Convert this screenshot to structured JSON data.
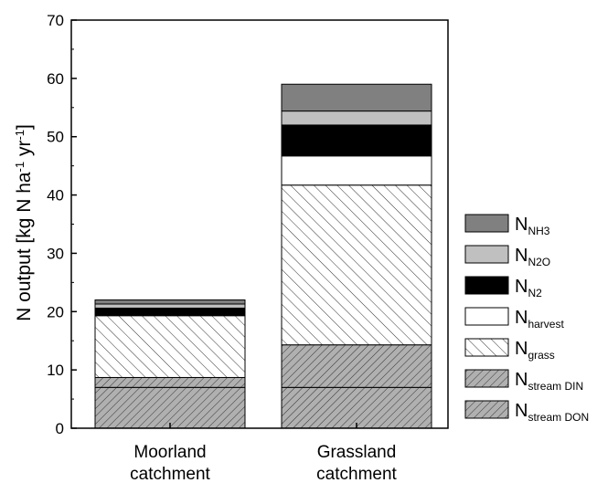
{
  "chart_data": {
    "type": "bar",
    "stacked": true,
    "title": "",
    "ylabel": "N output [kg N ha",
    "ylabel_sup1": "-1",
    "ylabel_mid": " yr",
    "ylabel_sup2": "-1",
    "ylabel_end": "]",
    "ylim": [
      0,
      70
    ],
    "yticks": [
      0,
      10,
      20,
      30,
      40,
      50,
      60,
      70
    ],
    "categories": [
      {
        "line1": "Moorland",
        "line2": "catchment"
      },
      {
        "line1": "Grassland",
        "line2": "catchment"
      }
    ],
    "series": [
      {
        "name": "N",
        "sub": "stream DON",
        "fill": "hatch-dense",
        "color": "#b0b0b0",
        "values": [
          7.0,
          7.0
        ]
      },
      {
        "name": "N",
        "sub": "stream DIN",
        "fill": "hatch-dense",
        "color": "#b0b0b0",
        "values": [
          1.7,
          7.3
        ]
      },
      {
        "name": "N",
        "sub": "grass",
        "fill": "hatch-sparse",
        "color": "#ffffff",
        "values": [
          10.6,
          27.4
        ]
      },
      {
        "name": "N",
        "sub": "harvest",
        "fill": "solid",
        "color": "#ffffff",
        "values": [
          0.0,
          5.0
        ]
      },
      {
        "name": "N",
        "sub": "N2",
        "fill": "solid",
        "color": "#000000",
        "values": [
          1.3,
          5.3
        ]
      },
      {
        "name": "N",
        "sub": "N2O",
        "fill": "solid",
        "color": "#c0c0c0",
        "values": [
          0.7,
          2.4
        ]
      },
      {
        "name": "N",
        "sub": "NH3",
        "fill": "solid",
        "color": "#808080",
        "values": [
          0.7,
          4.6
        ]
      }
    ],
    "legend_position": "right"
  }
}
